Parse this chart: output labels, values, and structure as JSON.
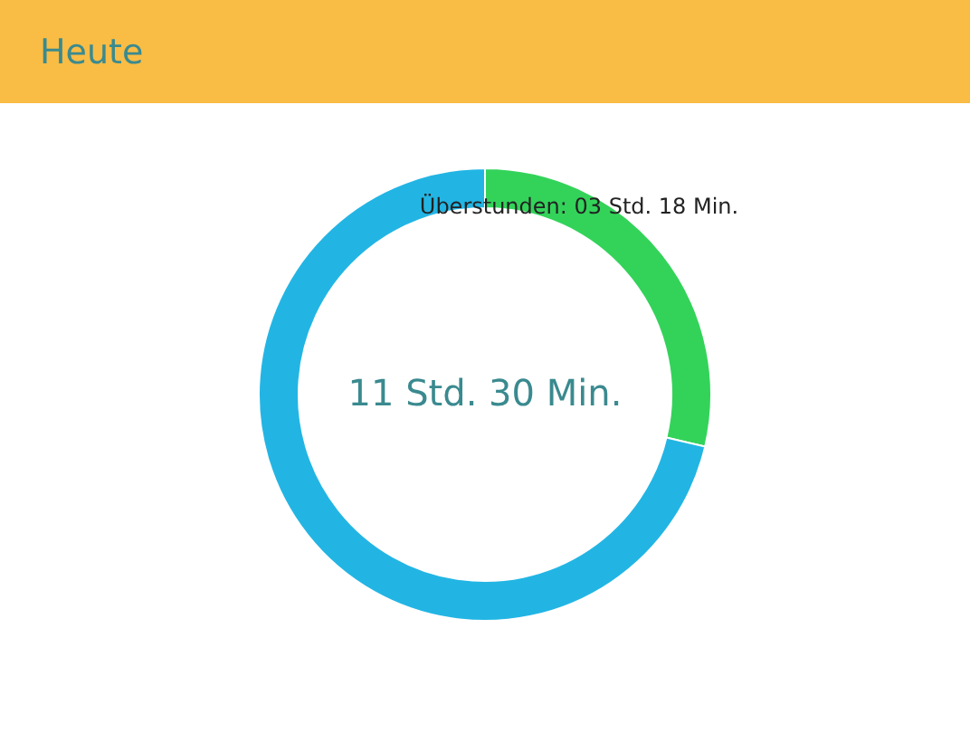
{
  "chart_data": {
    "type": "donut",
    "title": "Heute",
    "categories": [
      null,
      null
    ],
    "values": [
      28.7,
      71.3
    ],
    "colors": [
      "#33d35a",
      "#22b5e4"
    ],
    "annotations": [
      "11 Std. 30 Min.",
      "Überstunden: 03 Std. 18 Min."
    ]
  }
}
